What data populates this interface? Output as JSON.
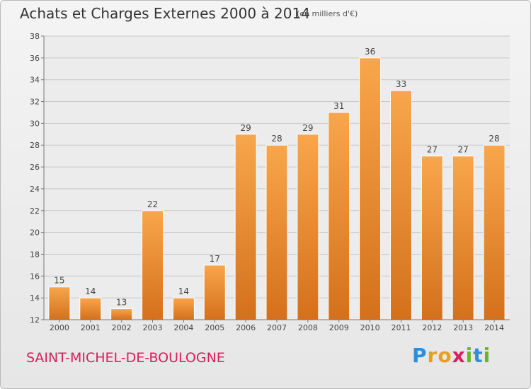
{
  "header": {
    "title": "Achats et Charges Externes 2000 à 2014",
    "unit": "(en milliers d'€)"
  },
  "footer": {
    "commune": "SAINT-MICHEL-DE-BOULOGNE",
    "logo_letters": [
      "P",
      "r",
      "o",
      "x",
      "i",
      "t",
      "i"
    ],
    "logo_colors": [
      "#2f8fd6",
      "#e8a01a",
      "#e8a01a",
      "#d6205f",
      "#6ab42d",
      "#2f8fd6",
      "#6ab42d"
    ]
  },
  "chart_data": {
    "type": "bar",
    "title": "Achats et Charges Externes 2000 à 2014",
    "xlabel": "",
    "ylabel": "",
    "categories": [
      "2000",
      "2001",
      "2002",
      "2003",
      "2004",
      "2005",
      "2006",
      "2007",
      "2008",
      "2009",
      "2010",
      "2011",
      "2012",
      "2013",
      "2014"
    ],
    "values": [
      15,
      14,
      13,
      22,
      14,
      17,
      29,
      28,
      29,
      31,
      36,
      33,
      27,
      27,
      28
    ],
    "ylim": [
      12,
      38
    ],
    "yticks": [
      12,
      14,
      16,
      18,
      20,
      22,
      24,
      26,
      28,
      30,
      32,
      34,
      36,
      38
    ],
    "grid": true,
    "bar_color": "#f59a3c",
    "bar_color_dark": "#d86e1b"
  }
}
